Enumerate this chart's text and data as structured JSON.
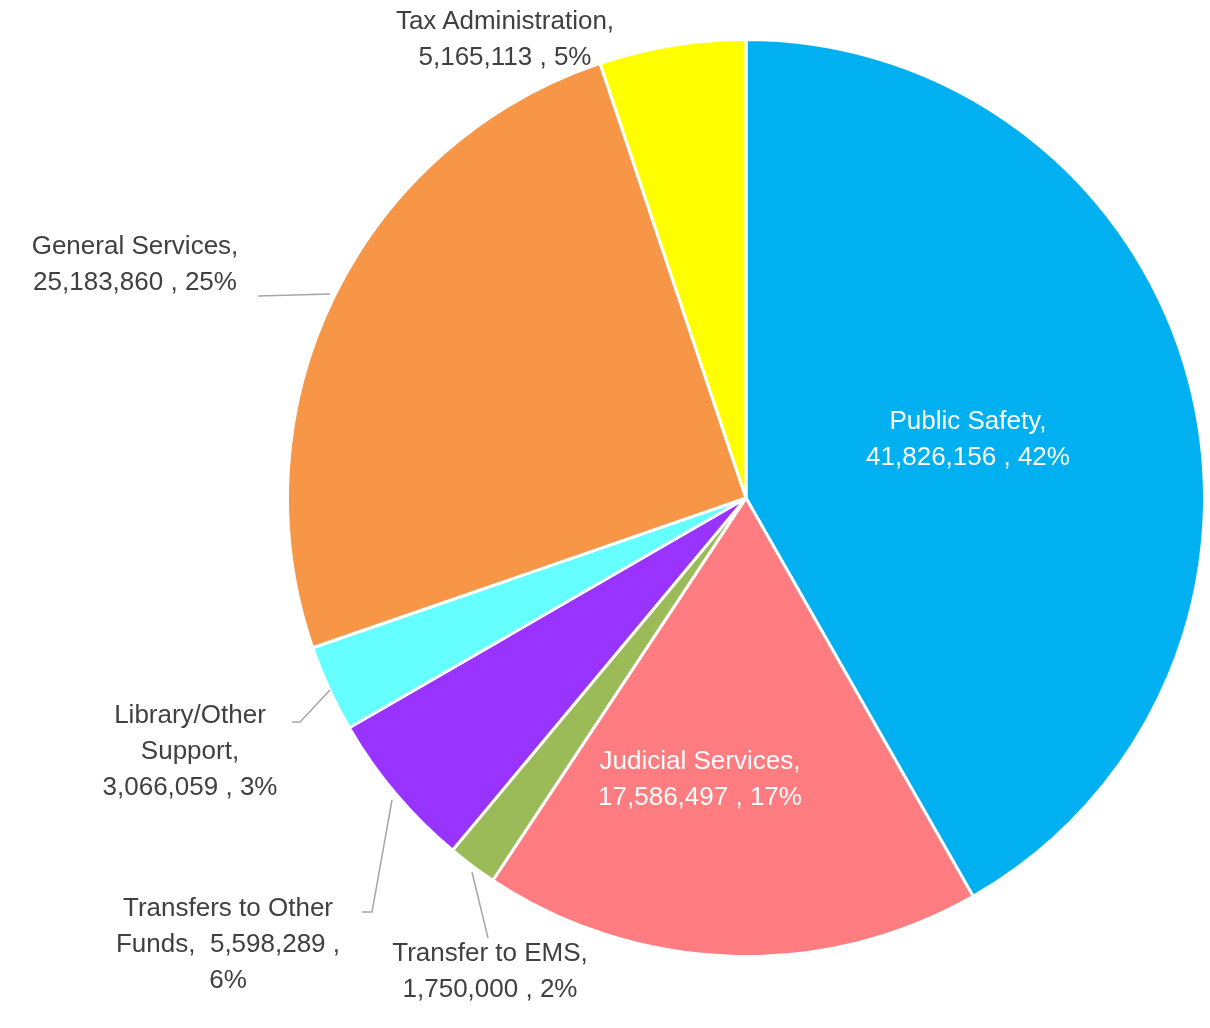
{
  "chart_data": {
    "type": "pie",
    "categories": [
      "Public Safety",
      "Judicial Services",
      "Transfer to EMS",
      "Transfers to Other Funds",
      "Library/Other Support",
      "General Services",
      "Tax Administration"
    ],
    "values": [
      41826156,
      17586497,
      1750000,
      5598289,
      3066059,
      25183860,
      5165113
    ],
    "colors": [
      "#00b0f0",
      "#ff7c80",
      "#9bbb59",
      "#9933ff",
      "#66ffff",
      "#f79646",
      "#ffff00"
    ],
    "value_labels": [
      ", 41,826,156 , 42%",
      ", 17,586,497 , 17%",
      ", 1,750,000 , 2%",
      ",  5,598,289 , 6%",
      ", 3,066,059 , 3%",
      ", 25,183,860 , 25%",
      ", 5,165,113 , 5%"
    ]
  }
}
